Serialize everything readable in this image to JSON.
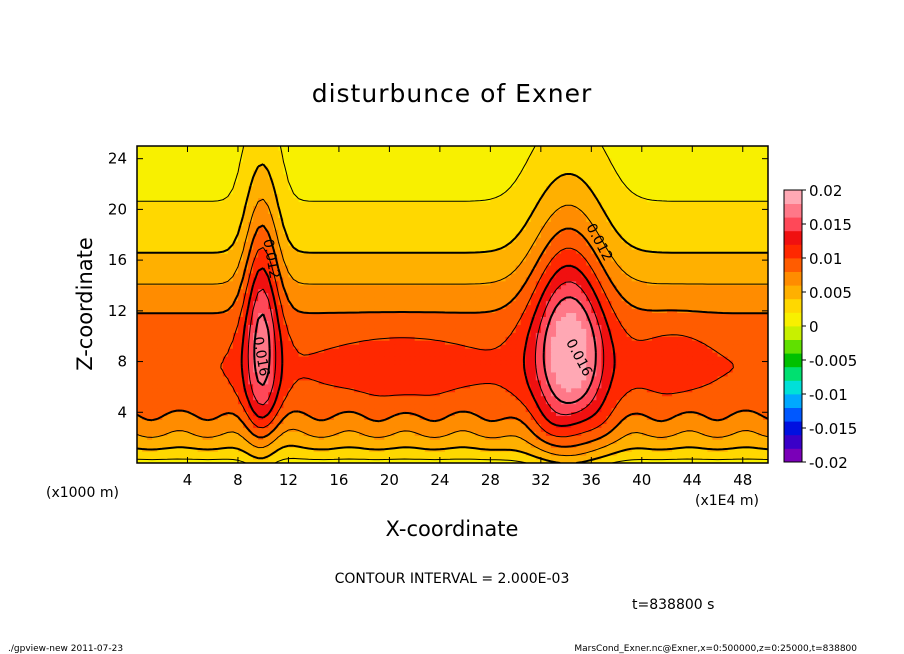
{
  "chart_data": {
    "type": "heatmap",
    "title": "disturbunce of Exner",
    "xlabel": "X-coordinate",
    "ylabel": "Z-coordinate",
    "x_unit_label": "(x1E4 m)",
    "y_unit_label": "(x1000 m)",
    "x_ticks": [
      "4",
      "8",
      "12",
      "16",
      "20",
      "24",
      "28",
      "32",
      "36",
      "40",
      "44",
      "48"
    ],
    "y_ticks": [
      "4",
      "8",
      "12",
      "16",
      "20",
      "24"
    ],
    "xlim": [
      0,
      50
    ],
    "ylim": [
      0,
      25
    ],
    "colorbar": {
      "range": [
        -0.02,
        0.02
      ],
      "labels": [
        "0.02",
        "0.015",
        "0.01",
        "0.005",
        "0",
        "-0.005",
        "-0.01",
        "-0.015",
        "-0.02"
      ],
      "colors": [
        "#7a00b8",
        "#3a00c8",
        "#0010e0",
        "#0058ff",
        "#00a8ff",
        "#00e0d8",
        "#00e070",
        "#00c000",
        "#60e000",
        "#c8f000",
        "#f8f000",
        "#ffd800",
        "#ffb000",
        "#ff8c00",
        "#ff5c00",
        "#ff2800",
        "#f01010",
        "#ff4858",
        "#ff7888",
        "#ffa8b4"
      ]
    },
    "contour_interval": "CONTOUR INTERVAL = 2.000E-03",
    "contour_labels": [
      {
        "text": "0.012",
        "x": 10.6,
        "z": 16.1
      },
      {
        "text": "0.016",
        "x": 9.8,
        "z": 8.4
      },
      {
        "text": "0.012",
        "x": 36.6,
        "z": 17.4
      },
      {
        "text": "0.016",
        "x": 35.0,
        "z": 8.3
      }
    ],
    "time_label": "t=838800 s",
    "footer_left": "./gpview-new  2011-07-23",
    "footer_right": "MarsCond_Exner.nc@Exner,x=0:500000,z=0:25000,t=838800"
  }
}
